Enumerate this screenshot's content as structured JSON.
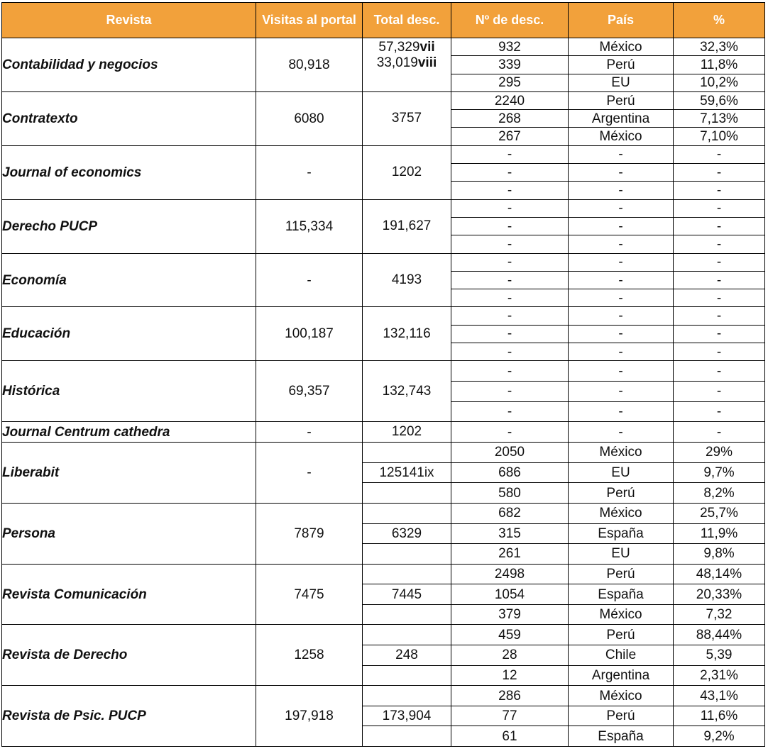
{
  "header": {
    "revista": "Revista",
    "visitas": "Visitas al portal",
    "total": "Total desc.",
    "ndesc": "Nº de desc.",
    "pais": "País",
    "pct": "%"
  },
  "colors": {
    "header_bg": "#f2a13b",
    "header_text": "#ffffff"
  },
  "rows": [
    {
      "name": "Contabilidad y negocios",
      "visitas": "80,918",
      "total_line1": "57,329",
      "total_line1_note": "vii",
      "total_line2": "33,019",
      "total_line2_note": "viii",
      "sub": [
        [
          "932",
          "México",
          "32,3%"
        ],
        [
          "339",
          "Perú",
          "11,8%"
        ],
        [
          "295",
          "EU",
          "10,2%"
        ]
      ]
    },
    {
      "name": "Contratexto",
      "visitas": "6080",
      "total": "3757",
      "sub": [
        [
          "2240",
          "Perú",
          "59,6%"
        ],
        [
          "268",
          "Argentina",
          "7,13%"
        ],
        [
          "267",
          "México",
          "7,10%"
        ]
      ]
    },
    {
      "name": "Journal of economics",
      "visitas": "-",
      "total": "1202",
      "sub": [
        [
          "-",
          "-",
          "-"
        ],
        [
          "-",
          "-",
          "-"
        ],
        [
          "-",
          "-",
          "-"
        ]
      ]
    },
    {
      "name": "Derecho PUCP",
      "visitas": "115,334",
      "total": "191,627",
      "sub": [
        [
          "-",
          "-",
          "-"
        ],
        [
          "-",
          "-",
          "-"
        ],
        [
          "-",
          "-",
          "-"
        ]
      ]
    },
    {
      "name": "Economía",
      "visitas": "-",
      "total": "4193",
      "sub": [
        [
          "-",
          "-",
          "-"
        ],
        [
          "-",
          "-",
          "-"
        ],
        [
          "-",
          "-",
          "-"
        ]
      ]
    },
    {
      "name": "Educación",
      "visitas": "100,187",
      "total": "132,116",
      "sub": [
        [
          "-",
          "-",
          "-"
        ],
        [
          "-",
          "-",
          "-"
        ],
        [
          "-",
          "-",
          "-"
        ]
      ]
    },
    {
      "name": "Histórica",
      "visitas": "69,357",
      "total": "132,743",
      "sub": [
        [
          "-",
          "-",
          "-"
        ],
        [
          "-",
          "-",
          "-"
        ],
        [
          "-",
          "-",
          "-"
        ]
      ]
    },
    {
      "name": "Journal Centrum cathedra",
      "visitas": "-",
      "total": "1202",
      "sub": [
        [
          "-",
          "-",
          "-"
        ]
      ]
    },
    {
      "name": "Liberabit",
      "visitas": "-",
      "total": "125141ix",
      "sub": [
        [
          "2050",
          "México",
          "29%"
        ],
        [
          "686",
          "EU",
          "9,7%"
        ],
        [
          "580",
          "Perú",
          "8,2%"
        ]
      ]
    },
    {
      "name": "Persona",
      "visitas": "7879",
      "total": "6329",
      "sub": [
        [
          "682",
          "México",
          "25,7%"
        ],
        [
          "315",
          "España",
          "11,9%"
        ],
        [
          "261",
          "EU",
          "9,8%"
        ]
      ]
    },
    {
      "name": "Revista Comunicación",
      "visitas": "7475",
      "total": "7445",
      "sub": [
        [
          "2498",
          "Perú",
          "48,14%"
        ],
        [
          "1054",
          "España",
          "20,33%"
        ],
        [
          "379",
          "México",
          "7,32"
        ]
      ]
    },
    {
      "name": "Revista de Derecho",
      "visitas": "1258",
      "total": "248",
      "sub": [
        [
          "459",
          "Perú",
          "88,44%"
        ],
        [
          "28",
          "Chile",
          "5,39"
        ],
        [
          "12",
          "Argentina",
          "2,31%"
        ]
      ]
    },
    {
      "name": "Revista de Psic. PUCP",
      "visitas": "197,918",
      "total": "173,904",
      "sub": [
        [
          "286",
          "México",
          "43,1%"
        ],
        [
          "77",
          "Perú",
          "11,6%"
        ],
        [
          "61",
          "España",
          "9,2%"
        ]
      ]
    }
  ]
}
